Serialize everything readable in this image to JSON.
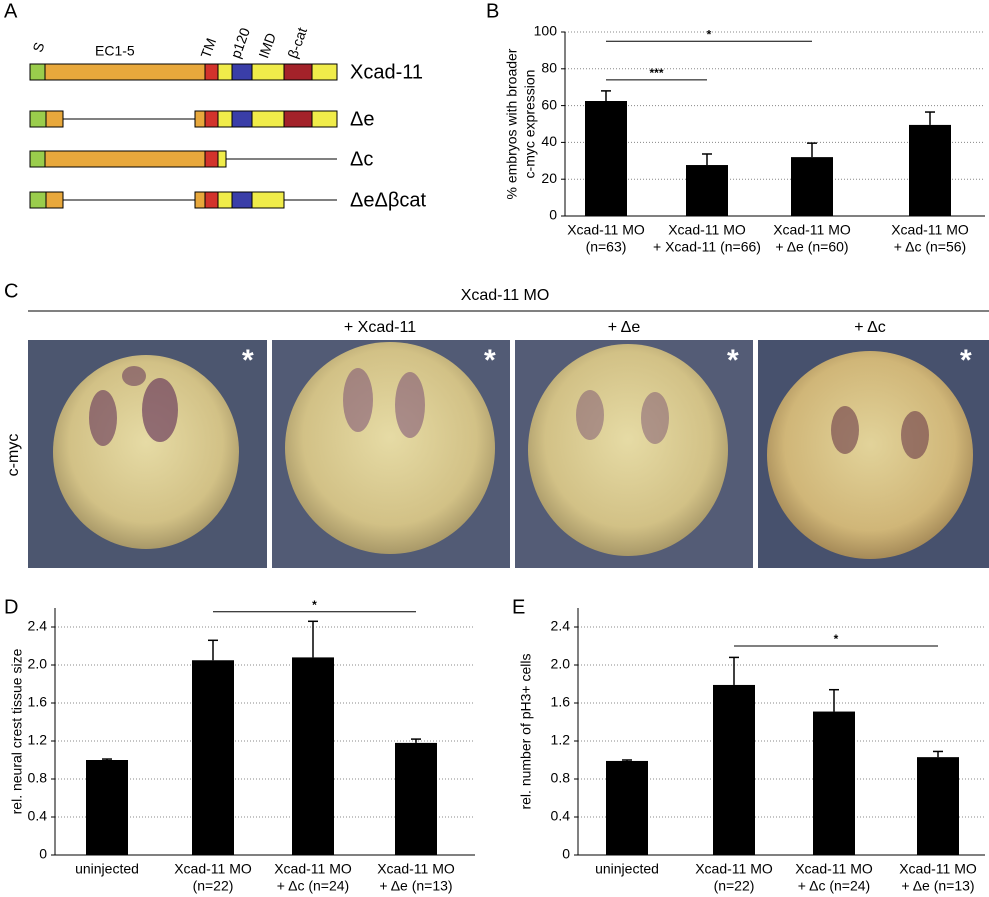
{
  "panels": [
    "A",
    "B",
    "C",
    "D",
    "E"
  ],
  "diagram": {
    "domains": [
      "S",
      "EC1-5",
      "TM",
      "p120",
      "IMD",
      "β-cat"
    ],
    "constructs": [
      "Xcad-11",
      "Δe",
      "Δc",
      "ΔeΔβcat"
    ]
  },
  "images": {
    "header": "Xcad-11 MO",
    "columns": [
      "+ Xcad-11",
      "+ Δe",
      "+ Δc"
    ],
    "row_label": "c-myc",
    "marker": "*"
  },
  "chart_data": [
    {
      "type": "bar",
      "ylabel": [
        "% embryos with broader",
        "c-myc expression"
      ],
      "categories": [
        [
          "Xcad-11 MO",
          "(n=63)"
        ],
        [
          "Xcad-11 MO",
          "+ Xcad-11 (n=66)"
        ],
        [
          "Xcad-11 MO",
          "+ Δe (n=60)"
        ],
        [
          "Xcad-11 MO",
          "+ Δc (n=56)"
        ]
      ],
      "values": [
        62.5,
        27.7,
        32,
        49.5
      ],
      "errors": [
        5.5,
        6,
        7.6,
        7
      ],
      "color": "#000000",
      "ylim": [
        0,
        100
      ],
      "yticks": [
        0,
        20,
        40,
        60,
        80,
        100
      ],
      "grid": true,
      "annotations": [
        {
          "label": "*",
          "from": 0,
          "to": 2,
          "y": 95
        },
        {
          "label": "***",
          "from": 0,
          "to": 1,
          "y": 74
        }
      ]
    },
    {
      "type": "bar",
      "ylabel": [
        "rel. neural crest tissue size"
      ],
      "categories": [
        [
          "uninjected"
        ],
        [
          "Xcad-11 MO",
          "(n=22)"
        ],
        [
          "Xcad-11 MO",
          "+ Δc (n=24)"
        ],
        [
          "Xcad-11 MO",
          "+ Δe (n=13)"
        ]
      ],
      "values": [
        1.0,
        2.05,
        2.08,
        1.18
      ],
      "errors": [
        0.01,
        0.21,
        0.38,
        0.04
      ],
      "color": "#000000",
      "ylim": [
        0,
        2.6
      ],
      "yticks": [
        0,
        0.4,
        0.8,
        1.2,
        1.6,
        {
          "value": 2,
          "label": "2.0"
        },
        2.4
      ],
      "grid": true,
      "annotations": [
        {
          "label": "*",
          "from": 1,
          "to": 3,
          "y": 2.56
        }
      ]
    },
    {
      "type": "bar",
      "ylabel": [
        "rel. number of pH3+ cells"
      ],
      "categories": [
        [
          "uninjected"
        ],
        [
          "Xcad-11 MO",
          "(n=22)"
        ],
        [
          "Xcad-11 MO",
          "+ Δc (n=24)"
        ],
        [
          "Xcad-11 MO",
          "+ Δe (n=13)"
        ]
      ],
      "values": [
        0.99,
        1.79,
        1.51,
        1.03
      ],
      "errors": [
        0.01,
        0.29,
        0.23,
        0.06
      ],
      "color": "#000000",
      "ylim": [
        0,
        2.6
      ],
      "yticks": [
        0,
        0.4,
        0.8,
        1.2,
        1.6,
        {
          "value": 2,
          "label": "2.0"
        },
        2.4
      ],
      "grid": true,
      "annotations": [
        {
          "label": "*",
          "from": 1,
          "to": 3,
          "y": 2.2
        }
      ]
    }
  ]
}
